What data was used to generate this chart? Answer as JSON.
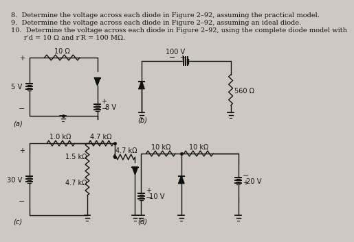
{
  "bg_color": "#cdc8c2",
  "text_color": "#111111",
  "line_color": "#111111",
  "title_lines": [
    "8.  Determine the voltage across each diode in Figure 2–92, assuming the practical model.",
    "9.  Determine the voltage across each diode in Figure 2–92, assuming an ideal diode.",
    "10.  Determine the voltage across each diode in Figure 2–92, using the complete diode model with",
    "      r′d = 10 Ω and r′R = 100 MΩ."
  ],
  "labels": {
    "a": "(a)",
    "b": "(b)",
    "c": "(c)",
    "d": "(d)",
    "5V": "5 V",
    "8V": "8 V",
    "10ohm": "10 Ω",
    "100V": "100 V",
    "560ohm": "560 Ω",
    "30V": "30 V",
    "1k0": "1.0 kΩ",
    "1k5": "1.5 kΩ",
    "4k7": "4.7 kΩ",
    "10kA": "10 kΩ",
    "10kB": "10 kΩ",
    "10V": "10 V",
    "20V": "20 V"
  }
}
